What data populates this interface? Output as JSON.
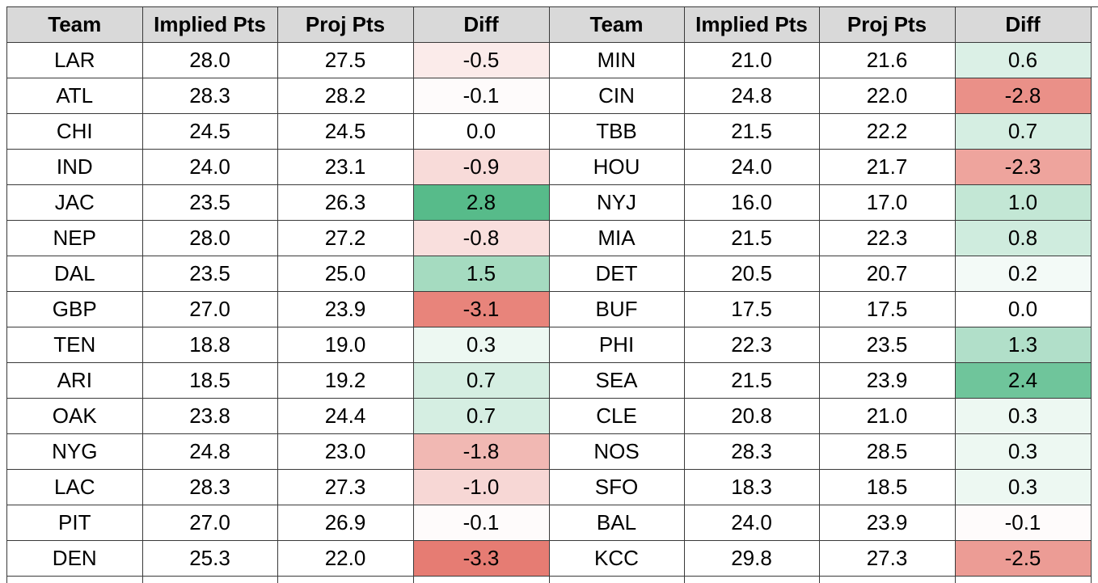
{
  "headers": [
    "Team",
    "Implied Pts",
    "Proj Pts",
    "Diff",
    "Team",
    "Implied Pts",
    "Proj Pts",
    "Diff"
  ],
  "colors": {
    "header_bg": "#d9d9d9",
    "grid_line": "#3a3a3a",
    "positive_max": "#57bb8a",
    "negative_max": "#e67c73",
    "neutral": "#ffffff"
  },
  "rows": [
    {
      "left": {
        "team": "LAR",
        "implied": "28.0",
        "proj": "27.5",
        "diff": "-0.5"
      },
      "right": {
        "team": "MIN",
        "implied": "21.0",
        "proj": "21.6",
        "diff": "0.6"
      }
    },
    {
      "left": {
        "team": "ATL",
        "implied": "28.3",
        "proj": "28.2",
        "diff": "-0.1"
      },
      "right": {
        "team": "CIN",
        "implied": "24.8",
        "proj": "22.0",
        "diff": "-2.8"
      }
    },
    {
      "left": {
        "team": "CHI",
        "implied": "24.5",
        "proj": "24.5",
        "diff": "0.0"
      },
      "right": {
        "team": "TBB",
        "implied": "21.5",
        "proj": "22.2",
        "diff": "0.7"
      }
    },
    {
      "left": {
        "team": "IND",
        "implied": "24.0",
        "proj": "23.1",
        "diff": "-0.9"
      },
      "right": {
        "team": "HOU",
        "implied": "24.0",
        "proj": "21.7",
        "diff": "-2.3"
      }
    },
    {
      "left": {
        "team": "JAC",
        "implied": "23.5",
        "proj": "26.3",
        "diff": "2.8"
      },
      "right": {
        "team": "NYJ",
        "implied": "16.0",
        "proj": "17.0",
        "diff": "1.0"
      }
    },
    {
      "left": {
        "team": "NEP",
        "implied": "28.0",
        "proj": "27.2",
        "diff": "-0.8"
      },
      "right": {
        "team": "MIA",
        "implied": "21.5",
        "proj": "22.3",
        "diff": "0.8"
      }
    },
    {
      "left": {
        "team": "DAL",
        "implied": "23.5",
        "proj": "25.0",
        "diff": "1.5"
      },
      "right": {
        "team": "DET",
        "implied": "20.5",
        "proj": "20.7",
        "diff": "0.2"
      }
    },
    {
      "left": {
        "team": "GBP",
        "implied": "27.0",
        "proj": "23.9",
        "diff": "-3.1"
      },
      "right": {
        "team": "BUF",
        "implied": "17.5",
        "proj": "17.5",
        "diff": "0.0"
      }
    },
    {
      "left": {
        "team": "TEN",
        "implied": "18.8",
        "proj": "19.0",
        "diff": "0.3"
      },
      "right": {
        "team": "PHI",
        "implied": "22.3",
        "proj": "23.5",
        "diff": "1.3"
      }
    },
    {
      "left": {
        "team": "ARI",
        "implied": "18.5",
        "proj": "19.2",
        "diff": "0.7"
      },
      "right": {
        "team": "SEA",
        "implied": "21.5",
        "proj": "23.9",
        "diff": "2.4"
      }
    },
    {
      "left": {
        "team": "OAK",
        "implied": "23.8",
        "proj": "24.4",
        "diff": "0.7"
      },
      "right": {
        "team": "CLE",
        "implied": "20.8",
        "proj": "21.0",
        "diff": "0.3"
      }
    },
    {
      "left": {
        "team": "NYG",
        "implied": "24.8",
        "proj": "23.0",
        "diff": "-1.8"
      },
      "right": {
        "team": "NOS",
        "implied": "28.3",
        "proj": "28.5",
        "diff": "0.3"
      }
    },
    {
      "left": {
        "team": "LAC",
        "implied": "28.3",
        "proj": "27.3",
        "diff": "-1.0"
      },
      "right": {
        "team": "SFO",
        "implied": "18.3",
        "proj": "18.5",
        "diff": "0.3"
      }
    },
    {
      "left": {
        "team": "PIT",
        "implied": "27.0",
        "proj": "26.9",
        "diff": "-0.1"
      },
      "right": {
        "team": "BAL",
        "implied": "24.0",
        "proj": "23.9",
        "diff": "-0.1"
      }
    },
    {
      "left": {
        "team": "DEN",
        "implied": "25.3",
        "proj": "22.0",
        "diff": "-3.3"
      },
      "right": {
        "team": "KCC",
        "implied": "29.8",
        "proj": "27.3",
        "diff": "-2.5"
      }
    }
  ]
}
